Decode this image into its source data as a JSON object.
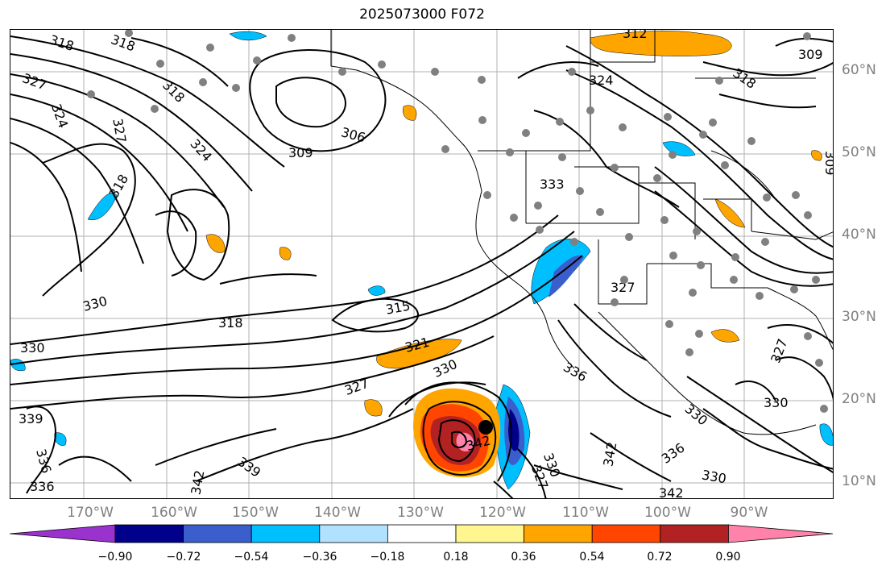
{
  "title": "2025073000 F072",
  "lat_labels": [
    "60°N",
    "50°N",
    "40°N",
    "30°N",
    "20°N",
    "10°N"
  ],
  "lon_labels": [
    "170°W",
    "160°W",
    "150°W",
    "140°W",
    "130°W",
    "120°W",
    "110°W",
    "100°W",
    "90°W"
  ],
  "colorbar": {
    "ticks": [
      "−0.90",
      "−0.72",
      "−0.54",
      "−0.36",
      "−0.18",
      "0.18",
      "0.36",
      "0.54",
      "0.72",
      "0.90"
    ],
    "colors": [
      "#9a32cd",
      "#00008b",
      "#3a5fcd",
      "#00bfff",
      "#b0e2ff",
      "#ffffff",
      "#fff68f",
      "#ffa500",
      "#ff4500",
      "#b22222",
      "#ff82ab"
    ]
  },
  "contour_labels": [
    {
      "text": "318"
    },
    {
      "text": "318"
    },
    {
      "text": "327"
    },
    {
      "text": "324"
    },
    {
      "text": "327"
    },
    {
      "text": "318"
    },
    {
      "text": "324"
    },
    {
      "text": "318"
    },
    {
      "text": "306"
    },
    {
      "text": "309"
    },
    {
      "text": "315"
    },
    {
      "text": "318"
    },
    {
      "text": "321"
    },
    {
      "text": "327"
    },
    {
      "text": "330"
    },
    {
      "text": "330"
    },
    {
      "text": "330"
    },
    {
      "text": "339"
    },
    {
      "text": "336"
    },
    {
      "text": "336"
    },
    {
      "text": "342"
    },
    {
      "text": "339"
    },
    {
      "text": "342"
    },
    {
      "text": "330"
    },
    {
      "text": "327"
    },
    {
      "text": "336"
    },
    {
      "text": "333"
    },
    {
      "text": "312"
    },
    {
      "text": "309"
    },
    {
      "text": "318"
    },
    {
      "text": "309"
    },
    {
      "text": "330"
    },
    {
      "text": "336"
    },
    {
      "text": "330"
    },
    {
      "text": "342"
    },
    {
      "text": "342"
    },
    {
      "text": "327"
    },
    {
      "text": "330"
    },
    {
      "text": "324"
    },
    {
      "text": "327"
    }
  ],
  "colors": {
    "grid": "#b0b0b0",
    "contour": "#000000",
    "station": "#808080",
    "coast": "#000000"
  }
}
